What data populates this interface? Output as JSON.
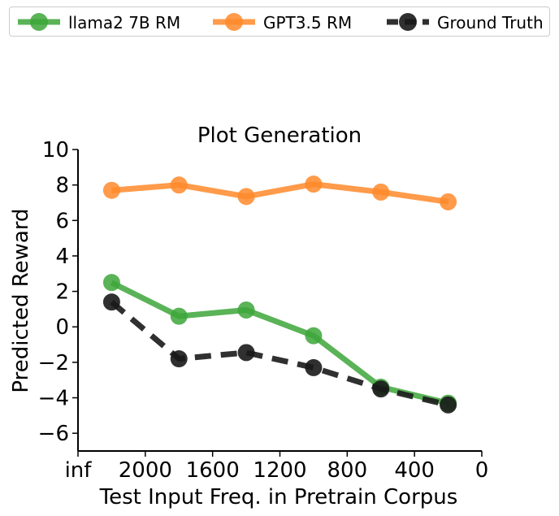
{
  "chart_data": {
    "type": "line",
    "title": "Plot Generation",
    "xlabel": "Test Input Freq. in Pretrain Corpus",
    "ylabel": "Predicted Reward",
    "x_tick_labels": [
      "inf",
      "2000",
      "1600",
      "1200",
      "800",
      "400",
      "0"
    ],
    "y_tick_labels": [
      "−6",
      "−4",
      "−2",
      "0",
      "2",
      "4",
      "6",
      "8",
      "10"
    ],
    "x_ticks": [
      2400,
      2000,
      1600,
      1200,
      800,
      400,
      0
    ],
    "y_ticks": [
      -6,
      -4,
      -2,
      0,
      2,
      4,
      6,
      8,
      10
    ],
    "xlim": [
      2400,
      0
    ],
    "ylim": [
      -7,
      10
    ],
    "x": [
      2200,
      1800,
      1400,
      1000,
      600,
      200
    ],
    "series": [
      {
        "name": "llama2 7B RM",
        "color": "#3da63a",
        "style": "solid",
        "values": [
          2.5,
          0.6,
          0.95,
          -0.5,
          -3.4,
          -4.3
        ]
      },
      {
        "name": "GPT3.5 RM",
        "color": "#ff8a2a",
        "style": "solid",
        "values": [
          7.7,
          8.0,
          7.35,
          8.05,
          7.6,
          7.05
        ]
      },
      {
        "name": "Ground Truth",
        "color": "#1a1a1a",
        "style": "dashed",
        "values": [
          1.4,
          -1.8,
          -1.45,
          -2.3,
          -3.5,
          -4.4
        ]
      }
    ],
    "legend_position": "top"
  }
}
